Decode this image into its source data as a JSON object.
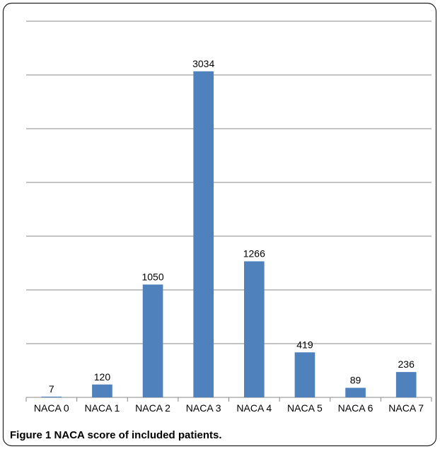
{
  "chart_data": {
    "type": "bar",
    "categories": [
      "NACA 0",
      "NACA 1",
      "NACA 2",
      "NACA 3",
      "NACA 4",
      "NACA 5",
      "NACA 6",
      "NACA 7"
    ],
    "values": [
      7,
      120,
      1050,
      3034,
      1266,
      419,
      89,
      236
    ],
    "color": "#4f81bd",
    "ylim": [
      0,
      3500
    ],
    "yticks": [
      0,
      500,
      1000,
      1500,
      2000,
      2500,
      3000,
      3500
    ],
    "show_ytick_labels": false,
    "grid": true,
    "figure_label": "Figure 1",
    "caption": "NACA score of included patients."
  }
}
